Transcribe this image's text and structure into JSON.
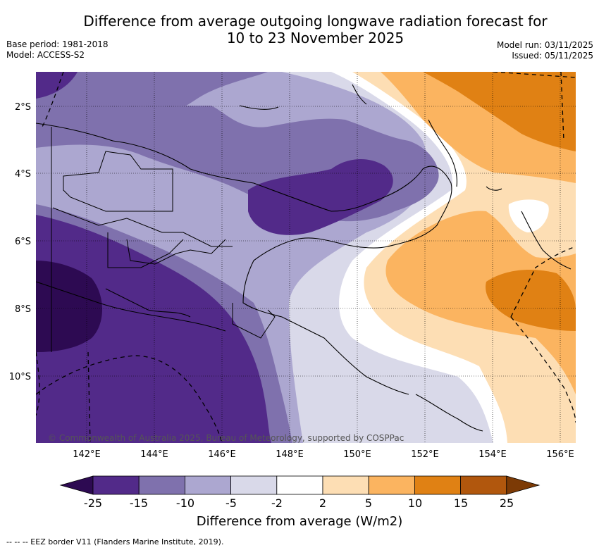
{
  "title_line1": "Difference from average outgoing longwave radiation forecast for",
  "title_line2": "10 to 23 November 2025",
  "meta_left": {
    "base_period": "Base period: 1981-2018",
    "model": "Model: ACCESS-S2"
  },
  "meta_right": {
    "model_run": "Model run: 03/11/2025",
    "issued": "Issued: 05/11/2025"
  },
  "copyright": "© Commonwealth of Australia 2025, Bureau of Meteorology, supported by COSPPac",
  "lon_ticks": [
    "142°E",
    "144°E",
    "146°E",
    "148°E",
    "150°E",
    "152°E",
    "154°E",
    "156°E"
  ],
  "lat_ticks": [
    "2°S",
    "4°S",
    "6°S",
    "8°S",
    "10°S"
  ],
  "colorbar": {
    "title": "Difference from average (W/m2)",
    "tick_labels": [
      "-25",
      "-15",
      "-10",
      "-5",
      "-2",
      "2",
      "5",
      "10",
      "15",
      "25"
    ],
    "colors": [
      "#2d0a52",
      "#522a89",
      "#7f71ad",
      "#aca7d0",
      "#d9d9e9",
      "#ffffff",
      "#fddeb4",
      "#fbb460",
      "#e08114",
      "#b1570d",
      "#7c3a05"
    ]
  },
  "footer": "--  --  -- EEZ border V11 (Flanders Marine Institute, 2019)."
}
